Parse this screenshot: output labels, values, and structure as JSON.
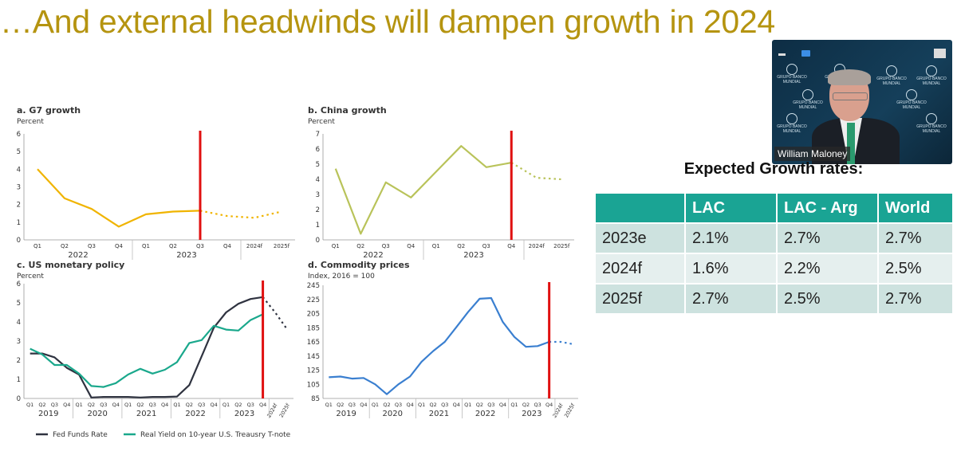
{
  "slide": {
    "title": "…And external headwinds will dampen growth in 2024"
  },
  "video": {
    "participant_name": "William Maloney",
    "background_logo_text": "GRUPO BANCO MUNDIAL",
    "icons": [
      "minimize-icon",
      "camera-icon",
      "maximize-icon"
    ]
  },
  "growth_table": {
    "title": "Expected Growth rates:",
    "columns": [
      "",
      "LAC",
      "LAC - Arg",
      "World"
    ],
    "rows": [
      {
        "label": "2023e",
        "values": [
          "2.1%",
          "2.7%",
          "2.7%"
        ]
      },
      {
        "label": "2024f",
        "values": [
          "1.6%",
          "2.2%",
          "2.5%"
        ]
      },
      {
        "label": "2025f",
        "values": [
          "2.7%",
          "2.5%",
          "2.7%"
        ]
      }
    ],
    "header_color": "#1aa494"
  },
  "chart_data": [
    {
      "type": "line",
      "title": "a. G7 growth",
      "ylabel": "Percent",
      "ylim": [
        0,
        6
      ],
      "yticks": [
        "0",
        "1",
        "2",
        "3",
        "4",
        "5",
        "6"
      ],
      "categories": [
        "Q1",
        "Q2",
        "Q3",
        "Q4",
        "Q1",
        "Q2",
        "Q3",
        "Q4",
        "2024f",
        "2025f"
      ],
      "year_groups": [
        {
          "label": "2022",
          "span": 4
        },
        {
          "label": "2023",
          "span": 4
        },
        {
          "label": "",
          "span": 2
        }
      ],
      "rotate_last": 0,
      "marker_index": 6,
      "series": [
        {
          "name": "G7 growth",
          "color": "#f0b400",
          "style": "solid",
          "values": [
            4.0,
            2.35,
            1.75,
            0.75,
            1.45,
            1.6,
            1.65,
            null,
            null,
            null
          ]
        },
        {
          "name": "G7 growth forecast",
          "color": "#f0b400",
          "style": "dotted",
          "values": [
            null,
            null,
            null,
            null,
            null,
            null,
            1.65,
            1.35,
            1.25,
            1.6
          ]
        }
      ],
      "marker_color": "#e01010"
    },
    {
      "type": "line",
      "title": "b. China growth",
      "ylabel": "Percent",
      "ylim": [
        0,
        7
      ],
      "yticks": [
        "0",
        "1",
        "2",
        "3",
        "4",
        "5",
        "6",
        "7"
      ],
      "categories": [
        "Q1",
        "Q2",
        "Q3",
        "Q4",
        "Q1",
        "Q2",
        "Q3",
        "Q4",
        "2024f",
        "2025f"
      ],
      "year_groups": [
        {
          "label": "2022",
          "span": 4
        },
        {
          "label": "2023",
          "span": 4
        },
        {
          "label": "",
          "span": 2
        }
      ],
      "rotate_last": 0,
      "marker_index": 7,
      "series": [
        {
          "name": "China growth",
          "color": "#b9c35a",
          "style": "solid",
          "values": [
            4.7,
            0.4,
            3.8,
            2.8,
            4.5,
            6.2,
            4.8,
            5.1,
            null,
            null
          ]
        },
        {
          "name": "China growth forecast",
          "color": "#b9c35a",
          "style": "dotted",
          "values": [
            null,
            null,
            null,
            null,
            null,
            null,
            null,
            5.1,
            4.1,
            4.0
          ]
        }
      ],
      "marker_color": "#e01010"
    },
    {
      "type": "line",
      "title": "c. US monetary policy",
      "ylabel": "Percent",
      "ylim": [
        0,
        6
      ],
      "yticks": [
        "0",
        "1",
        "2",
        "3",
        "4",
        "5",
        "6"
      ],
      "categories": [
        "Q1",
        "Q2",
        "Q3",
        "Q4",
        "Q1",
        "Q2",
        "Q3",
        "Q4",
        "Q1",
        "Q2",
        "Q3",
        "Q4",
        "Q1",
        "Q2",
        "Q3",
        "Q4",
        "Q1",
        "Q2",
        "Q3",
        "Q4",
        "2024f",
        "2025f"
      ],
      "year_groups": [
        {
          "label": "2019",
          "span": 4
        },
        {
          "label": "2020",
          "span": 4
        },
        {
          "label": "2021",
          "span": 4
        },
        {
          "label": "2022",
          "span": 4
        },
        {
          "label": "2023",
          "span": 4
        },
        {
          "label": "",
          "span": 2
        }
      ],
      "rotate_last": 2,
      "marker_index": 19,
      "series": [
        {
          "name": "Fed Funds Rate",
          "color": "#2f3340",
          "style": "solid",
          "values": [
            2.35,
            2.35,
            2.15,
            1.6,
            1.25,
            0.05,
            0.08,
            0.08,
            0.08,
            0.05,
            0.08,
            0.08,
            0.1,
            0.7,
            2.2,
            3.7,
            4.5,
            4.95,
            5.2,
            5.3,
            null,
            null
          ]
        },
        {
          "name": "Real Yield on 10-year U.S. Treausry T-note",
          "color": "#1aa88c",
          "style": "solid",
          "values": [
            2.6,
            2.3,
            1.75,
            1.75,
            1.3,
            0.65,
            0.6,
            0.8,
            1.25,
            1.55,
            1.3,
            1.5,
            1.9,
            2.9,
            3.05,
            3.8,
            3.6,
            3.55,
            4.1,
            4.4,
            null,
            null
          ]
        },
        {
          "name": "Fed Funds Rate forecast",
          "color": "#2f3340",
          "style": "dotted",
          "values": [
            null,
            null,
            null,
            null,
            null,
            null,
            null,
            null,
            null,
            null,
            null,
            null,
            null,
            null,
            null,
            null,
            null,
            null,
            null,
            5.3,
            4.5,
            3.6
          ]
        }
      ],
      "legend": [
        "Fed Funds Rate",
        "Real Yield on 10-year U.S. Treausry T-note"
      ],
      "marker_color": "#e01010"
    },
    {
      "type": "line",
      "title": "d. Commodity prices",
      "ylabel": "Index, 2016 = 100",
      "ylim": [
        85,
        245
      ],
      "yticks": [
        "85",
        "105",
        "125",
        "145",
        "165",
        "185",
        "205",
        "225",
        "245"
      ],
      "categories": [
        "Q1",
        "Q2",
        "Q3",
        "Q4",
        "Q1",
        "Q2",
        "Q3",
        "Q4",
        "Q1",
        "Q2",
        "Q3",
        "Q4",
        "Q1",
        "Q2",
        "Q3",
        "Q4",
        "Q1",
        "Q2",
        "Q3",
        "Q4",
        "2024f",
        "2025f"
      ],
      "year_groups": [
        {
          "label": "2019",
          "span": 4
        },
        {
          "label": "2020",
          "span": 4
        },
        {
          "label": "2021",
          "span": 4
        },
        {
          "label": "2022",
          "span": 4
        },
        {
          "label": "2023",
          "span": 4
        },
        {
          "label": "",
          "span": 2
        }
      ],
      "rotate_last": 2,
      "marker_index": 19,
      "series": [
        {
          "name": "Commodity prices",
          "color": "#3a7fd0",
          "style": "solid",
          "values": [
            115,
            116,
            113,
            114,
            105,
            91,
            105,
            116,
            137,
            152,
            165,
            186,
            207,
            226,
            227,
            193,
            172,
            158,
            159,
            165,
            null,
            null
          ]
        },
        {
          "name": "Commodity prices forecast",
          "color": "#3a7fd0",
          "style": "dotted",
          "values": [
            null,
            null,
            null,
            null,
            null,
            null,
            null,
            null,
            null,
            null,
            null,
            null,
            null,
            null,
            null,
            null,
            null,
            null,
            null,
            165,
            165,
            162
          ]
        }
      ],
      "marker_color": "#e01010"
    }
  ]
}
